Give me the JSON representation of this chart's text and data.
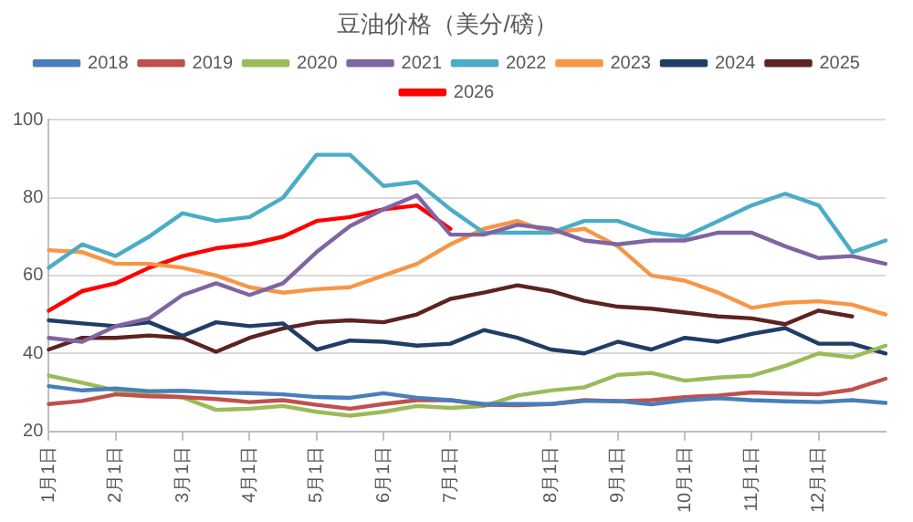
{
  "chart_data": {
    "type": "line",
    "title": "豆油价格（美分/磅）",
    "categories": [
      "1月1日",
      null,
      "2月1日",
      null,
      "3月1日",
      null,
      "4月1日",
      null,
      "5月1日",
      null,
      "6月1日",
      null,
      "7月1日",
      null,
      null,
      "8月1日",
      null,
      "9月1日",
      null,
      "10月1日",
      null,
      "11月1日",
      null,
      "12月1日",
      null,
      null
    ],
    "ylim": [
      20,
      100
    ],
    "yticks": [
      20,
      40,
      60,
      80,
      100
    ],
    "grid": "y",
    "legend": "top",
    "marker": "none",
    "line_style": "solid",
    "series": [
      {
        "name": "2018",
        "color": "#4a7ebb",
        "values": [
          31.6,
          30.5,
          31,
          30.3,
          30.4,
          30,
          29.8,
          29.5,
          28.8,
          28.6,
          29.8,
          28.6,
          28,
          27,
          27,
          27,
          27.8,
          27.8,
          26.9,
          28,
          28.5,
          28,
          27.7,
          27.5,
          28,
          27.3
        ]
      },
      {
        "name": "2019",
        "color": "#c0504d",
        "values": [
          27,
          27.8,
          29.5,
          29,
          28.8,
          28.3,
          27.5,
          28,
          26.8,
          25.8,
          27,
          28,
          28,
          26.8,
          26.7,
          27,
          28,
          27.7,
          28,
          28.8,
          29.2,
          30,
          29.7,
          29.5,
          30.7,
          33.5
        ]
      },
      {
        "name": "2020",
        "color": "#9bbb59",
        "values": [
          34.3,
          32.5,
          30.5,
          29.5,
          28.7,
          25.5,
          25.8,
          26.5,
          25,
          24,
          25,
          26.5,
          26,
          26.5,
          29.2,
          30.5,
          31.3,
          34.5,
          35,
          33,
          33.8,
          34.3,
          36.8,
          40,
          39,
          42
        ]
      },
      {
        "name": "2021",
        "color": "#8064a2",
        "values": [
          44,
          43,
          47,
          49,
          55,
          58,
          55,
          58,
          66,
          72.7,
          77,
          80.6,
          70.5,
          70.5,
          73,
          72,
          69,
          68,
          69,
          69,
          71,
          71,
          67.5,
          64.5,
          65,
          63
        ]
      },
      {
        "name": "2022",
        "color": "#4bacc6",
        "values": [
          62,
          68,
          65,
          70,
          76,
          74,
          75,
          80,
          91,
          91,
          83,
          84,
          77,
          71,
          71,
          71,
          74,
          74,
          71,
          70,
          74,
          78,
          81,
          78,
          66,
          69
        ]
      },
      {
        "name": "2023",
        "color": "#f79646",
        "values": [
          66.5,
          66,
          63,
          63,
          62,
          60,
          57,
          55.6,
          56.5,
          57,
          60,
          63,
          68,
          72,
          74,
          71,
          72,
          67.5,
          60,
          58.7,
          55.6,
          51.7,
          53,
          53.4,
          52.5,
          50
        ]
      },
      {
        "name": "2024",
        "color": "#1f3d66",
        "values": [
          48.5,
          47.7,
          47,
          48,
          44.5,
          48,
          47,
          47.7,
          41,
          43.3,
          43,
          42,
          42.5,
          46,
          44,
          41,
          40,
          43,
          41,
          44,
          43,
          45,
          46.5,
          42.5,
          42.5,
          40
        ]
      },
      {
        "name": "2025",
        "color": "#5c2320",
        "values": [
          41,
          44,
          44,
          44.6,
          44,
          40.4,
          44,
          46.4,
          48,
          48.5,
          48,
          50,
          54,
          55.6,
          57.5,
          56,
          53.5,
          52,
          51.5,
          50.5,
          49.5,
          49,
          47.5,
          51,
          49.5,
          null
        ]
      },
      {
        "name": "2026",
        "color": "#ff0000",
        "values": [
          51,
          56,
          58,
          62,
          65,
          67,
          68,
          70,
          74,
          75,
          77,
          78,
          72,
          null,
          null,
          null,
          null,
          null,
          null,
          null,
          null,
          null,
          null,
          null,
          null,
          null
        ]
      }
    ]
  }
}
